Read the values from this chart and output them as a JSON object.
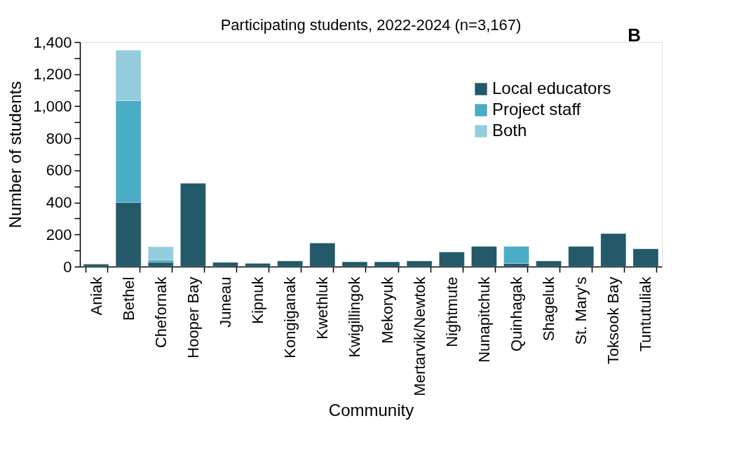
{
  "chart_data": {
    "type": "bar",
    "title": "Participating students, 2022-2024 (n=3,167)",
    "xlabel": "Community",
    "ylabel": "Number of students",
    "annotations": [
      "B"
    ],
    "categories": [
      "Aniak",
      "Bethel",
      "Chefornak",
      "Hooper Bay",
      "Juneau",
      "Kipnuk",
      "Kongiganak",
      "Kwethluk",
      "Kwigillingok",
      "Mekoryuk",
      "Mertarvik/Newtok",
      "Nightmute",
      "Nunapitchuk",
      "Quinhagak",
      "Shageluk",
      "St. Mary's",
      "Toksook Bay",
      "Tuntutuliak"
    ],
    "stacked": true,
    "series": [
      {
        "name": "Local educators",
        "color": "#235969",
        "values": [
          15,
          400,
          26,
          519,
          26,
          20,
          35,
          147,
          30,
          30,
          35,
          91,
          126,
          20,
          35,
          126,
          206,
          111
        ]
      },
      {
        "name": "Project staff",
        "color": "#4bacc6",
        "values": [
          null,
          635,
          15,
          null,
          null,
          null,
          null,
          null,
          null,
          null,
          null,
          null,
          null,
          106,
          null,
          null,
          null,
          null
        ]
      },
      {
        "name": "Both",
        "color": "#93cddd",
        "values": [
          null,
          315,
          83,
          null,
          null,
          null,
          null,
          null,
          null,
          null,
          null,
          null,
          null,
          null,
          null,
          null,
          null,
          null
        ]
      }
    ],
    "ylim": [
      0,
      1400
    ],
    "yticks": [
      0,
      {
        "value": 100,
        "label": null
      },
      200,
      {
        "value": 300,
        "label": null
      },
      400,
      {
        "value": 500,
        "label": null
      },
      600,
      {
        "value": 700,
        "label": null
      },
      800,
      {
        "value": 900,
        "label": null
      },
      {
        "value": 1000,
        "label": "1,000"
      },
      {
        "value": 1100,
        "label": null
      },
      {
        "value": 1200,
        "label": "1,200"
      },
      {
        "value": 1300,
        "label": null
      },
      {
        "value": 1400,
        "label": "1,400"
      }
    ],
    "grid": false,
    "legend": "top right"
  }
}
